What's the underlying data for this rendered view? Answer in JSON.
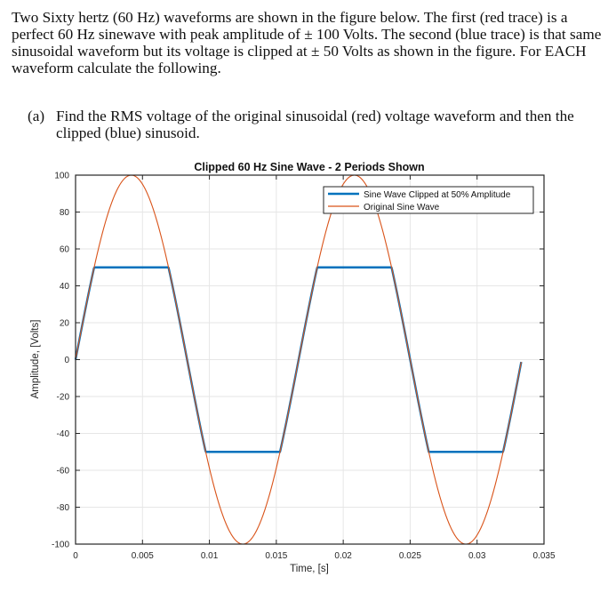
{
  "document": {
    "intro_paragraph": "Two Sixty hertz (60 Hz) waveforms are shown in the figure below.  The first (red trace) is a perfect 60 Hz sinewave with peak amplitude of ± 100 Volts.  The second (blue trace) is that same sinusoidal waveform but its voltage is clipped at ± 50 Volts as shown in the figure.  For EACH waveform calculate the following.",
    "question_a": {
      "label": "(a)",
      "text": "Find the RMS voltage of the original sinusoidal (red) voltage waveform and then the clipped (blue) sinusoid."
    }
  },
  "chart_data": {
    "type": "line",
    "title": "Clipped 60 Hz Sine Wave - 2 Periods Shown",
    "xlabel": "Time, [s]",
    "ylabel": "Amplitude, [Volts]",
    "xlim": [
      0,
      0.035
    ],
    "ylim": [
      -100,
      100
    ],
    "x_ticks": [
      "0",
      "0.005",
      "0.01",
      "0.015",
      "0.02",
      "0.025",
      "0.03",
      "0.035"
    ],
    "y_ticks": [
      "100",
      "80",
      "60",
      "40",
      "20",
      "0",
      "-20",
      "-40",
      "-60",
      "-80",
      "-100"
    ],
    "grid": true,
    "legend_position": "upper right",
    "frequency_hz": 60,
    "periods_shown": 2,
    "time_range": [
      0,
      0.0333
    ],
    "series": [
      {
        "name": "Sine Wave Clipped at 50% Amplitude",
        "color": "#0072BD",
        "function": "clip(100*sin(2*pi*60*t), -50, 50)",
        "peak": 50,
        "key_points": [
          {
            "t": 0,
            "v": 0
          },
          {
            "t": 0.00139,
            "v": 50
          },
          {
            "t": 0.00694,
            "v": 50
          },
          {
            "t": 0.00972,
            "v": -50
          },
          {
            "t": 0.01528,
            "v": -50
          },
          {
            "t": 0.01806,
            "v": 50
          },
          {
            "t": 0.02361,
            "v": 50
          },
          {
            "t": 0.02639,
            "v": -50
          },
          {
            "t": 0.03194,
            "v": -50
          },
          {
            "t": 0.03333,
            "v": 0
          }
        ]
      },
      {
        "name": "Original Sine Wave",
        "color": "#D95319",
        "function": "100*sin(2*pi*60*t)",
        "peak": 100,
        "key_points": [
          {
            "t": 0,
            "v": 0
          },
          {
            "t": 0.00417,
            "v": 100
          },
          {
            "t": 0.00833,
            "v": 0
          },
          {
            "t": 0.0125,
            "v": -100
          },
          {
            "t": 0.01667,
            "v": 0
          },
          {
            "t": 0.02083,
            "v": 100
          },
          {
            "t": 0.025,
            "v": 0
          },
          {
            "t": 0.02917,
            "v": -100
          },
          {
            "t": 0.03333,
            "v": 0
          }
        ]
      }
    ]
  }
}
